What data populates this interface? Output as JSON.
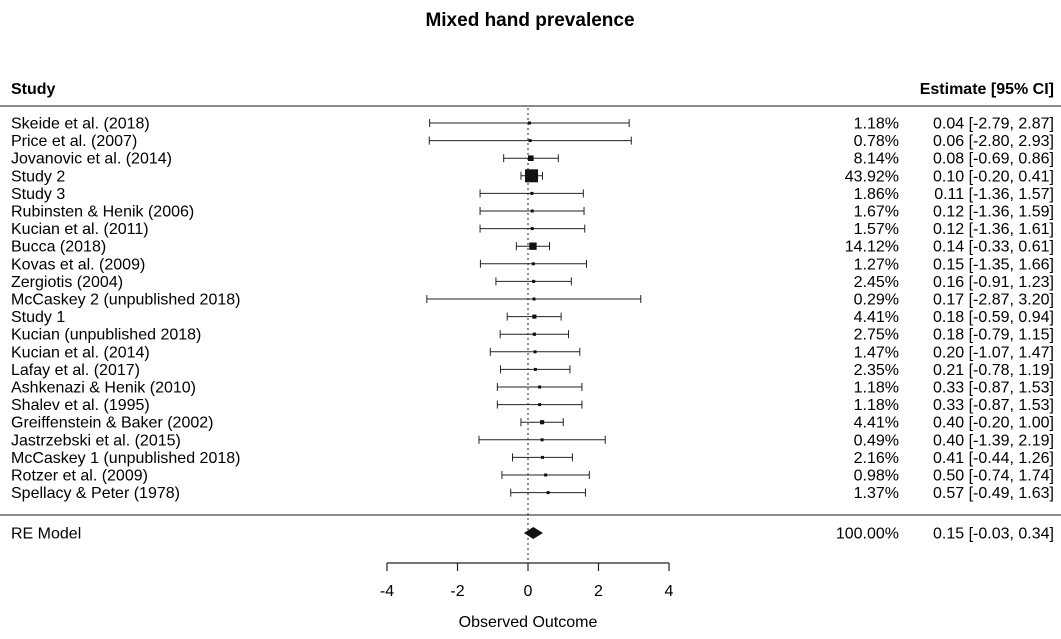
{
  "chart_data": {
    "type": "forest",
    "title": "Mixed hand prevalence",
    "column_headers": {
      "study": "Study",
      "estimate": "Estimate [95% CI]"
    },
    "xlabel": "Observed Outcome",
    "xlim": [
      -4,
      4
    ],
    "xticks": [
      "-4",
      "-2",
      "0",
      "2",
      "4"
    ],
    "reference_line_x": 0,
    "studies": [
      {
        "name": "Skeide et al. (2018)",
        "weight": "1.18%",
        "estimate_text": "0.04 [-2.79, 2.87]",
        "est": 0.04,
        "lo": -2.79,
        "hi": 2.87,
        "w": 1.18
      },
      {
        "name": "Price et al. (2007)",
        "weight": "0.78%",
        "estimate_text": "0.06 [-2.80, 2.93]",
        "est": 0.06,
        "lo": -2.8,
        "hi": 2.93,
        "w": 0.78
      },
      {
        "name": "Jovanovic et al. (2014)",
        "weight": "8.14%",
        "estimate_text": "0.08 [-0.69, 0.86]",
        "est": 0.08,
        "lo": -0.69,
        "hi": 0.86,
        "w": 8.14
      },
      {
        "name": "Study 2",
        "weight": "43.92%",
        "estimate_text": "0.10 [-0.20, 0.41]",
        "est": 0.1,
        "lo": -0.2,
        "hi": 0.41,
        "w": 43.92
      },
      {
        "name": "Study 3",
        "weight": "1.86%",
        "estimate_text": "0.11 [-1.36, 1.57]",
        "est": 0.11,
        "lo": -1.36,
        "hi": 1.57,
        "w": 1.86
      },
      {
        "name": "Rubinsten & Henik (2006)",
        "weight": "1.67%",
        "estimate_text": "0.12 [-1.36, 1.59]",
        "est": 0.12,
        "lo": -1.36,
        "hi": 1.59,
        "w": 1.67
      },
      {
        "name": "Kucian et al. (2011)",
        "weight": "1.57%",
        "estimate_text": "0.12 [-1.36, 1.61]",
        "est": 0.12,
        "lo": -1.36,
        "hi": 1.61,
        "w": 1.57
      },
      {
        "name": "Bucca (2018)",
        "weight": "14.12%",
        "estimate_text": "0.14 [-0.33, 0.61]",
        "est": 0.14,
        "lo": -0.33,
        "hi": 0.61,
        "w": 14.12
      },
      {
        "name": "Kovas et al. (2009)",
        "weight": "1.27%",
        "estimate_text": "0.15 [-1.35, 1.66]",
        "est": 0.15,
        "lo": -1.35,
        "hi": 1.66,
        "w": 1.27
      },
      {
        "name": "Zergiotis (2004)",
        "weight": "2.45%",
        "estimate_text": "0.16 [-0.91, 1.23]",
        "est": 0.16,
        "lo": -0.91,
        "hi": 1.23,
        "w": 2.45
      },
      {
        "name": "McCaskey 2 (unpublished 2018)",
        "weight": "0.29%",
        "estimate_text": "0.17 [-2.87, 3.20]",
        "est": 0.17,
        "lo": -2.87,
        "hi": 3.2,
        "w": 0.29
      },
      {
        "name": "Study 1",
        "weight": "4.41%",
        "estimate_text": "0.18 [-0.59, 0.94]",
        "est": 0.18,
        "lo": -0.59,
        "hi": 0.94,
        "w": 4.41
      },
      {
        "name": "Kucian  (unpublished 2018)",
        "weight": "2.75%",
        "estimate_text": "0.18 [-0.79, 1.15]",
        "est": 0.18,
        "lo": -0.79,
        "hi": 1.15,
        "w": 2.75
      },
      {
        "name": "Kucian et al. (2014)",
        "weight": "1.47%",
        "estimate_text": "0.20 [-1.07, 1.47]",
        "est": 0.2,
        "lo": -1.07,
        "hi": 1.47,
        "w": 1.47
      },
      {
        "name": "Lafay et al. (2017)",
        "weight": "2.35%",
        "estimate_text": "0.21 [-0.78, 1.19]",
        "est": 0.21,
        "lo": -0.78,
        "hi": 1.19,
        "w": 2.35
      },
      {
        "name": "Ashkenazi & Henik (2010)",
        "weight": "1.18%",
        "estimate_text": "0.33 [-0.87, 1.53]",
        "est": 0.33,
        "lo": -0.87,
        "hi": 1.53,
        "w": 1.18
      },
      {
        "name": "Shalev et al. (1995)",
        "weight": "1.18%",
        "estimate_text": "0.33 [-0.87, 1.53]",
        "est": 0.33,
        "lo": -0.87,
        "hi": 1.53,
        "w": 1.18
      },
      {
        "name": "Greiffenstein & Baker (2002)",
        "weight": "4.41%",
        "estimate_text": "0.40 [-0.20, 1.00]",
        "est": 0.4,
        "lo": -0.2,
        "hi": 1.0,
        "w": 4.41
      },
      {
        "name": "Jastrzebski et al. (2015)",
        "weight": "0.49%",
        "estimate_text": "0.40 [-1.39, 2.19]",
        "est": 0.4,
        "lo": -1.39,
        "hi": 2.19,
        "w": 0.49
      },
      {
        "name": "McCaskey 1 (unpublished 2018)",
        "weight": "2.16%",
        "estimate_text": "0.41 [-0.44, 1.26]",
        "est": 0.41,
        "lo": -0.44,
        "hi": 1.26,
        "w": 2.16
      },
      {
        "name": "Rotzer et al.  (2009)",
        "weight": "0.98%",
        "estimate_text": "0.50 [-0.74, 1.74]",
        "est": 0.5,
        "lo": -0.74,
        "hi": 1.74,
        "w": 0.98
      },
      {
        "name": "Spellacy & Peter (1978)",
        "weight": "1.37%",
        "estimate_text": "0.57 [-0.49, 1.63]",
        "est": 0.57,
        "lo": -0.49,
        "hi": 1.63,
        "w": 1.37
      }
    ],
    "summary": {
      "name": "RE Model",
      "weight": "100.00%",
      "estimate_text": "0.15 [-0.03, 0.34]",
      "est": 0.15,
      "lo": -0.03,
      "hi": 0.34
    }
  }
}
